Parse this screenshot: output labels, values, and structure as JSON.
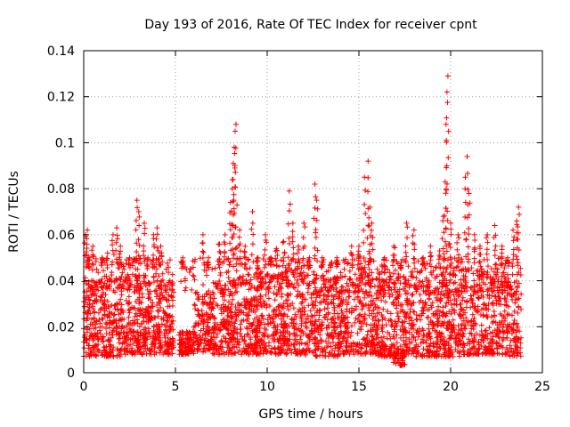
{
  "chart_data": {
    "type": "scatter",
    "title": "Day 193 of 2016, Rate Of TEC Index for receiver cpnt",
    "xlabel": "GPS time / hours",
    "ylabel": "ROTI / TECUs",
    "xlim": [
      0,
      25
    ],
    "ylim": [
      0,
      0.14
    ],
    "xticks": [
      0,
      5,
      10,
      15,
      20,
      25
    ],
    "yticks": [
      0,
      0.02,
      0.04,
      0.06,
      0.08,
      0.1,
      0.12,
      0.14
    ],
    "xtick_labels": [
      "0",
      "5",
      "10",
      "15",
      "20",
      "25"
    ],
    "ytick_labels": [
      "0",
      "0.02",
      "0.04",
      "0.06",
      "0.08",
      "0.1",
      "0.12",
      "0.14"
    ],
    "grid": true,
    "marker": "+",
    "color": "#ff0000",
    "data_gap_hours": [
      4.9,
      5.2
    ],
    "series": [
      {
        "name": "ROTI",
        "band_low": [
          0.007,
          0.007,
          0.008,
          0.008,
          0.008,
          0.008,
          0.009,
          0.008,
          0.008,
          0.008,
          0.008,
          0.008,
          0.007,
          0.007,
          0.008,
          0.008,
          0.007,
          0.008,
          0.007,
          0.007,
          0.007,
          0.008,
          0.008,
          0.007
        ],
        "band_high": [
          0.04,
          0.042,
          0.042,
          0.04,
          0.04,
          0.018,
          0.035,
          0.04,
          0.042,
          0.044,
          0.044,
          0.046,
          0.044,
          0.042,
          0.044,
          0.046,
          0.044,
          0.042,
          0.044,
          0.046,
          0.046,
          0.046,
          0.044,
          0.044
        ],
        "x": [
          0.1,
          0.2,
          0.3,
          0.5,
          0.7,
          1.0,
          1.3,
          1.6,
          1.8,
          2.0,
          2.2,
          2.5,
          2.9,
          3.0,
          3.3,
          3.5,
          3.8,
          4.0,
          4.2,
          4.5,
          4.7,
          5.4,
          5.6,
          6.0,
          6.5,
          6.8,
          7.0,
          7.4,
          7.7,
          8.0,
          8.1,
          8.15,
          8.2,
          8.25,
          8.3,
          8.5,
          8.8,
          9.2,
          9.5,
          9.9,
          10.2,
          10.5,
          10.9,
          11.2,
          11.4,
          11.7,
          12.0,
          12.3,
          12.6,
          12.7,
          13.0,
          13.5,
          13.8,
          14.2,
          14.6,
          15.0,
          15.3,
          15.5,
          15.6,
          15.7,
          16.0,
          16.4,
          16.9,
          17.3,
          17.6,
          18.0,
          18.5,
          18.9,
          19.4,
          19.6,
          19.7,
          19.75,
          19.8,
          19.85,
          20.0,
          20.4,
          20.8,
          20.9,
          21.0,
          21.3,
          21.6,
          22.0,
          22.4,
          22.8,
          23.1,
          23.4,
          23.6,
          23.7
        ],
        "y": [
          0.06,
          0.062,
          0.05,
          0.055,
          0.045,
          0.05,
          0.052,
          0.06,
          0.063,
          0.055,
          0.045,
          0.05,
          0.075,
          0.07,
          0.065,
          0.05,
          0.06,
          0.063,
          0.055,
          0.045,
          0.04,
          0.05,
          0.045,
          0.042,
          0.06,
          0.05,
          0.045,
          0.056,
          0.06,
          0.074,
          0.08,
          0.091,
          0.098,
          0.105,
          0.108,
          0.062,
          0.055,
          0.07,
          0.05,
          0.06,
          0.05,
          0.054,
          0.057,
          0.079,
          0.065,
          0.055,
          0.065,
          0.05,
          0.082,
          0.075,
          0.05,
          0.048,
          0.05,
          0.045,
          0.055,
          0.055,
          0.085,
          0.092,
          0.072,
          0.065,
          0.045,
          0.05,
          0.055,
          0.048,
          0.065,
          0.062,
          0.05,
          0.055,
          0.053,
          0.068,
          0.083,
          0.108,
          0.122,
          0.129,
          0.065,
          0.06,
          0.085,
          0.094,
          0.078,
          0.06,
          0.055,
          0.06,
          0.064,
          0.055,
          0.05,
          0.062,
          0.066,
          0.072
        ]
      }
    ]
  }
}
